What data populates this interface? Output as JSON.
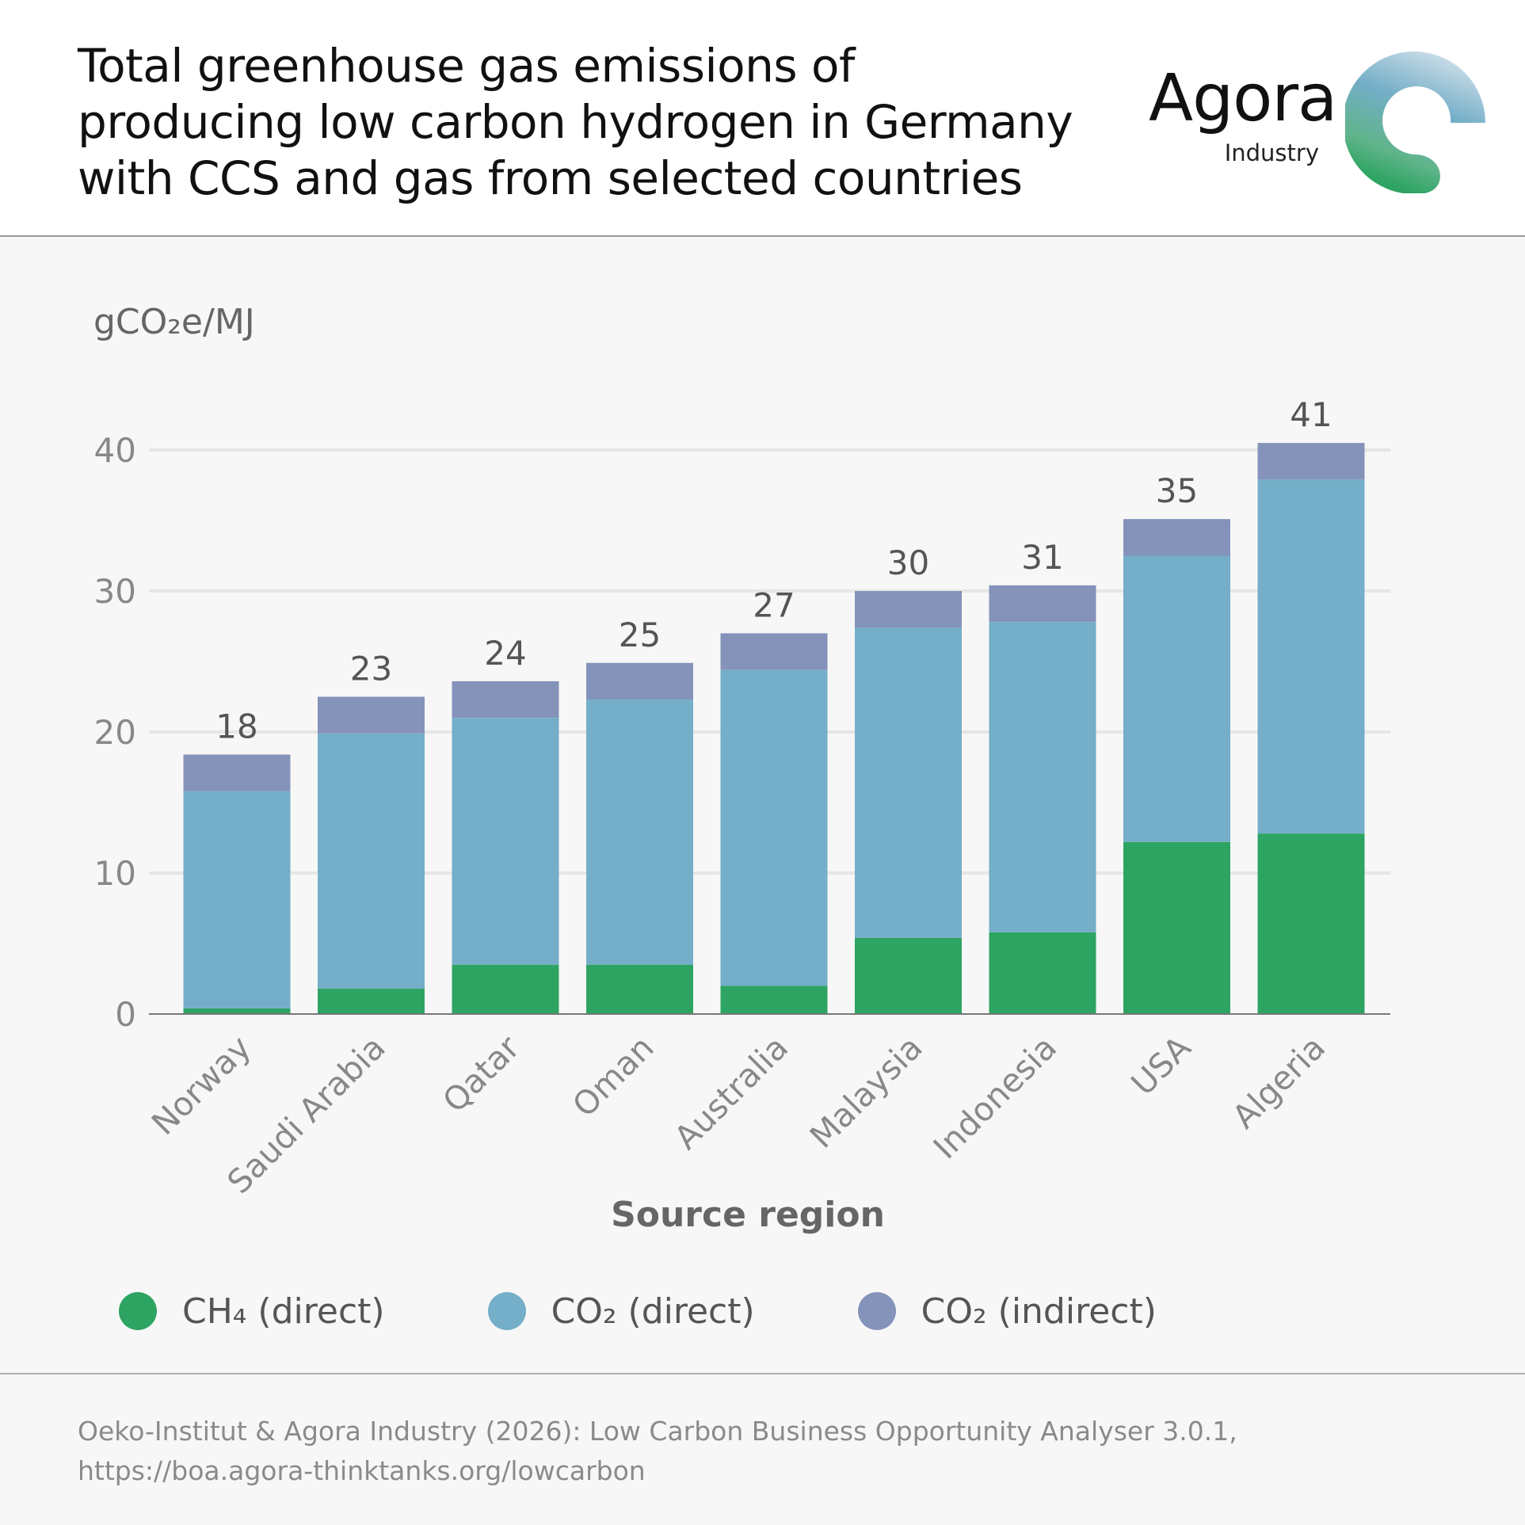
{
  "header": {
    "title_lines": [
      "Total greenhouse gas emissions of",
      "producing low carbon hydrogen in Germany",
      "with CCS and gas from selected countries"
    ],
    "logo_name": "Agora",
    "logo_sub": "Industry",
    "logo_icon": "agora-c-logo-icon"
  },
  "chart_data": {
    "type": "bar",
    "stacked": true,
    "unit_label": "gCO₂e/MJ",
    "xlabel": "Source region",
    "categories": [
      "Norway",
      "Saudi Arabia",
      "Qatar",
      "Oman",
      "Australia",
      "Malaysia",
      "Indonesia",
      "USA",
      "Algeria"
    ],
    "series": [
      {
        "name": "CH₄ (direct)",
        "color": "#2ea462",
        "values": [
          0.4,
          1.8,
          3.5,
          3.5,
          2.0,
          5.4,
          5.8,
          12.2,
          12.8
        ]
      },
      {
        "name": "CO₂ (direct)",
        "color": "#74aec8",
        "values": [
          15.4,
          18.1,
          17.5,
          18.8,
          22.4,
          22.0,
          22.0,
          20.3,
          25.1
        ]
      },
      {
        "name": "CO₂ (indirect)",
        "color": "#8593ba",
        "values": [
          2.6,
          2.6,
          2.6,
          2.6,
          2.6,
          2.6,
          2.6,
          2.6,
          2.6
        ]
      }
    ],
    "totals": [
      "18",
      "23",
      "24",
      "25",
      "27",
      "30",
      "31",
      "35",
      "41"
    ],
    "yticks": [
      0,
      10,
      20,
      30,
      40
    ],
    "ylim": [
      0,
      40
    ],
    "grid": true,
    "legend_position": "bottom"
  },
  "footer": {
    "source_lines": [
      "Oeko-Institut & Agora Industry (2026): Low Carbon Business Opportunity Analyser 3.0.1,",
      "https://boa.agora-thinktanks.org/lowcarbon"
    ]
  }
}
